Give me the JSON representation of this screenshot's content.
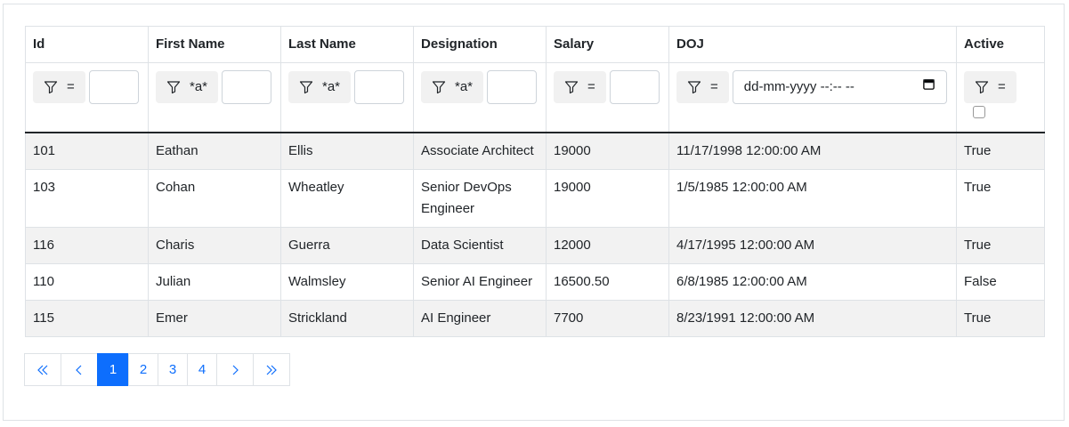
{
  "table": {
    "columns": [
      "Id",
      "First Name",
      "Last Name",
      "Designation",
      "Salary",
      "DOJ",
      "Active"
    ],
    "filters": [
      {
        "operator": "="
      },
      {
        "operator": "*a*"
      },
      {
        "operator": "*a*"
      },
      {
        "operator": "*a*"
      },
      {
        "operator": "="
      },
      {
        "operator": "=",
        "placeholder": "dd-mm-yyyy --:-- --"
      },
      {
        "operator": "="
      }
    ],
    "rows": [
      [
        "101",
        "Eathan",
        "Ellis",
        "Associate Architect",
        "19000",
        "11/17/1998 12:00:00 AM",
        "True"
      ],
      [
        "103",
        "Cohan",
        "Wheatley",
        "Senior DevOps Engineer",
        "19000",
        "1/5/1985 12:00:00 AM",
        "True"
      ],
      [
        "116",
        "Charis",
        "Guerra",
        "Data Scientist",
        "12000",
        "4/17/1995 12:00:00 AM",
        "True"
      ],
      [
        "110",
        "Julian",
        "Walmsley",
        "Senior AI Engineer",
        "16500.50",
        "6/8/1985 12:00:00 AM",
        "False"
      ],
      [
        "115",
        "Emer",
        "Strickland",
        "AI Engineer",
        "7700",
        "8/23/1991 12:00:00 AM",
        "True"
      ]
    ]
  },
  "pagination": {
    "pages": [
      "1",
      "2",
      "3",
      "4"
    ],
    "current_page_index": 0
  }
}
